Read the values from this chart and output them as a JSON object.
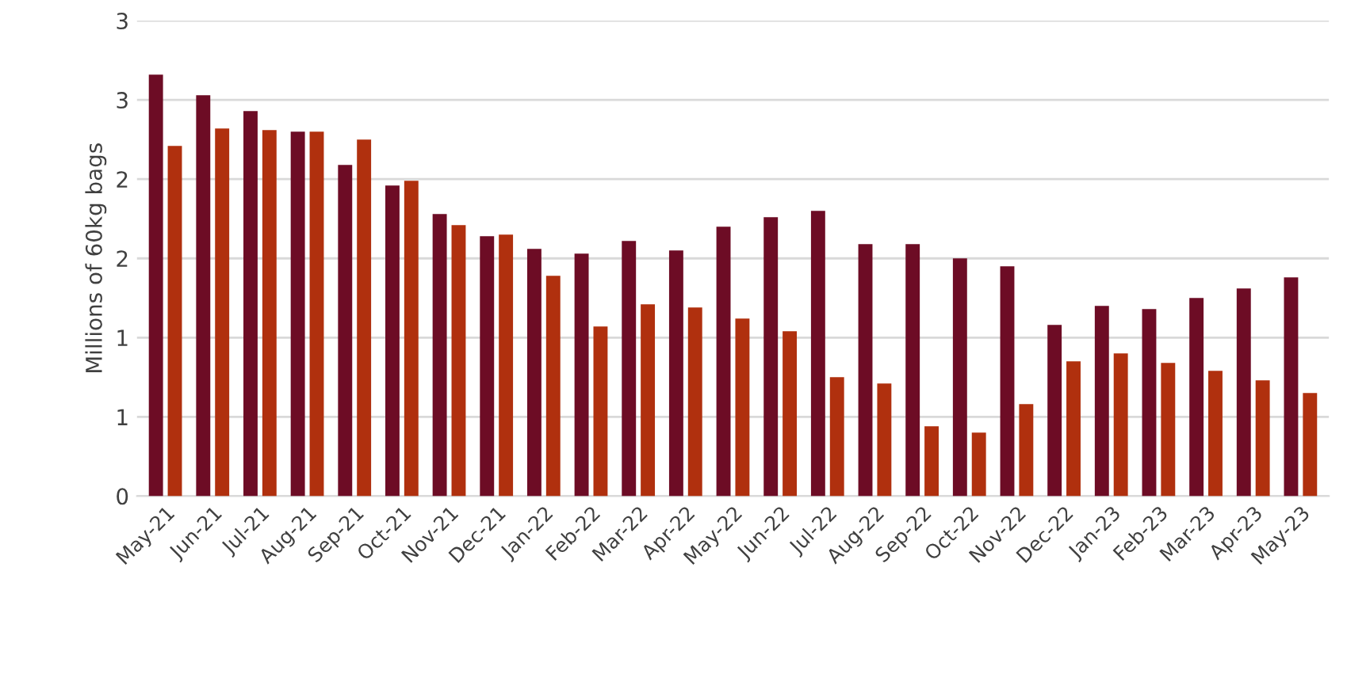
{
  "chart_data": {
    "type": "bar",
    "ylabel": "Millions of 60kg bags",
    "categories": [
      "May-21",
      "Jun-21",
      "Jul-21",
      "Aug-21",
      "Sep-21",
      "Oct-21",
      "Nov-21",
      "Dec-21",
      "Jan-22",
      "Feb-22",
      "Mar-22",
      "Apr-22",
      "May-22",
      "Jun-22",
      "Jul-22",
      "Aug-22",
      "Sep-22",
      "Oct-22",
      "Nov-22",
      "Dec-22",
      "Jan-23",
      "Feb-23",
      "Mar-23",
      "Apr-23",
      "May-23"
    ],
    "series": [
      {
        "color": "#6d0c25",
        "values": [
          2.66,
          2.53,
          2.43,
          2.3,
          2.09,
          1.96,
          1.78,
          1.64,
          1.56,
          1.53,
          1.61,
          1.55,
          1.7,
          1.76,
          1.8,
          1.59,
          1.59,
          1.5,
          1.45,
          1.08,
          1.2,
          1.18,
          1.25,
          1.31,
          1.38
        ]
      },
      {
        "color": "#b0300e",
        "values": [
          2.21,
          2.32,
          2.31,
          2.3,
          2.25,
          1.99,
          1.71,
          1.65,
          1.39,
          1.07,
          1.21,
          1.19,
          1.12,
          1.04,
          0.75,
          0.71,
          0.44,
          0.4,
          0.58,
          0.85,
          0.9,
          0.84,
          0.79,
          0.73,
          0.65
        ]
      }
    ],
    "ylim": [
      0,
      3
    ],
    "yticks": [
      0,
      {
        "value": 0.5,
        "label": "1"
      },
      1,
      {
        "value": 1.5,
        "label": "2"
      },
      2,
      {
        "value": 2.5,
        "label": "3"
      },
      3
    ],
    "grid": "y"
  }
}
